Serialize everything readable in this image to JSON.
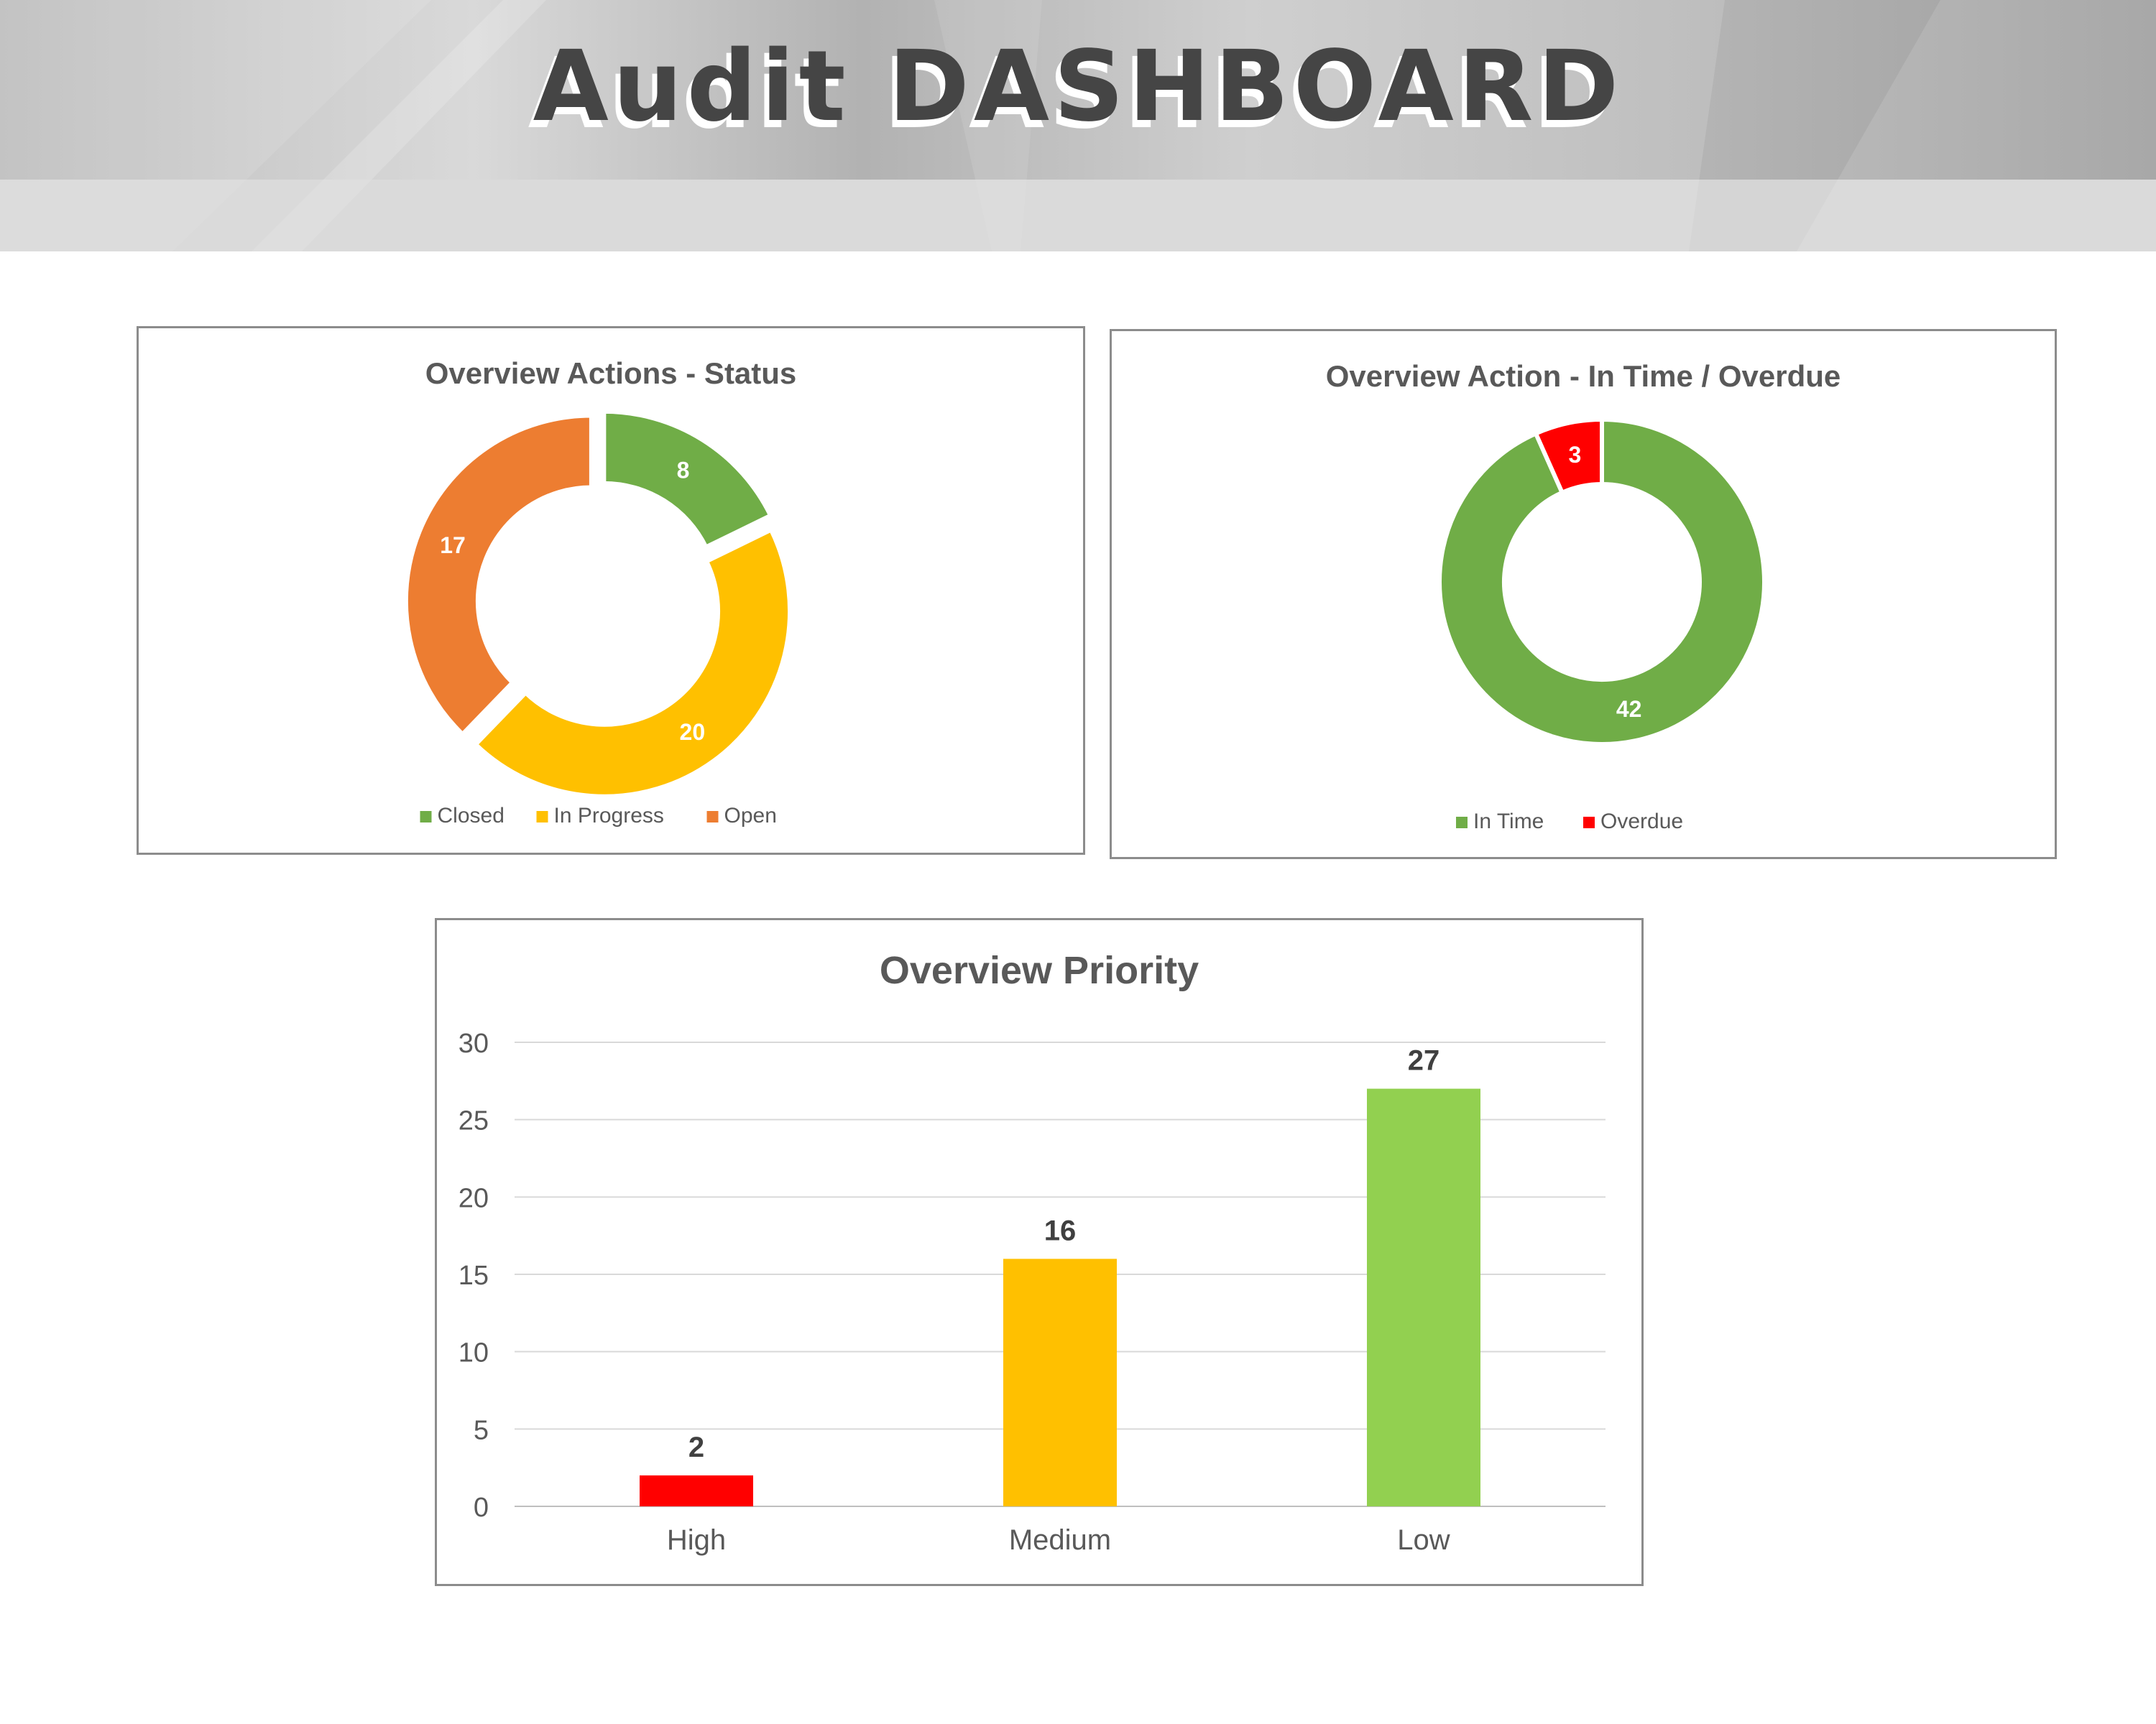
{
  "header": {
    "title": "Audit DASHBOARD"
  },
  "chart_data": [
    {
      "type": "pie",
      "variant": "donut",
      "title": "Overview Actions - Status",
      "categories": [
        "Closed",
        "In Progress",
        "Open"
      ],
      "values": [
        8,
        20,
        17
      ],
      "colors": [
        "#70ad47",
        "#ffc000",
        "#ed7d31"
      ],
      "legend": "bottom",
      "exploded": true
    },
    {
      "type": "pie",
      "variant": "donut",
      "title": "Overview Action - In Time / Overdue",
      "categories": [
        "In Time",
        "Overdue"
      ],
      "values": [
        42,
        3
      ],
      "colors": [
        "#70ad47",
        "#ff0000"
      ],
      "legend": "bottom",
      "exploded": false
    },
    {
      "type": "bar",
      "title": "Overview Priority",
      "categories": [
        "High",
        "Medium",
        "Low"
      ],
      "values": [
        2,
        16,
        27
      ],
      "colors": [
        "#ff0000",
        "#ffc000",
        "#92d050"
      ],
      "ylim": [
        0,
        30
      ],
      "yticks": [
        0,
        5,
        10,
        15,
        20,
        25,
        30
      ],
      "grid": true,
      "legend": "none"
    }
  ]
}
